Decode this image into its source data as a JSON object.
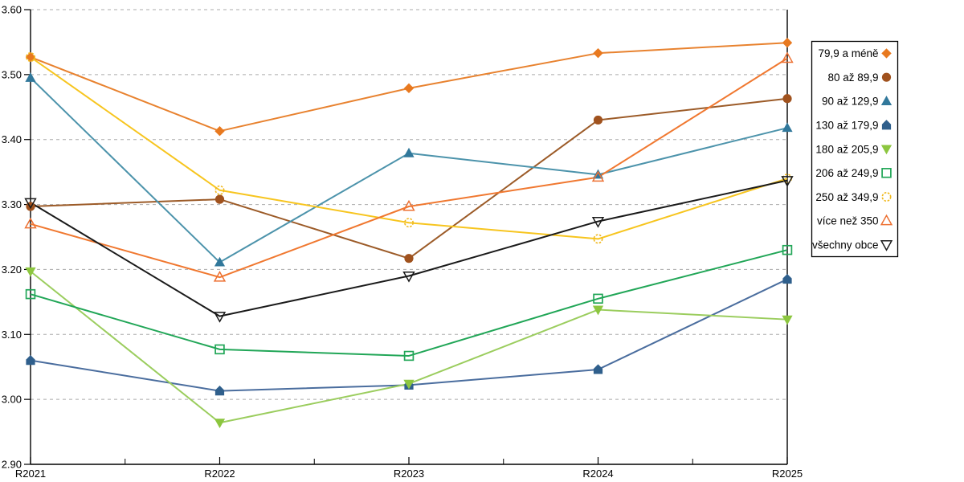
{
  "chart_data": {
    "type": "line",
    "title": "",
    "xlabel": "",
    "ylabel": "",
    "x_categories": [
      "R2021",
      "R2022",
      "R2023",
      "R2024",
      "R2025"
    ],
    "ylim": [
      2.9,
      3.6
    ],
    "ytick_step": 0.1,
    "y_tick_labels": [
      "3.60",
      "3.50",
      "3.40",
      "3.30",
      "3.20",
      "3.10",
      "3.00",
      "2.90"
    ],
    "grid": "horizontal-dashed",
    "legend_position": "right-outside-boxed",
    "series": [
      {
        "name": "79,9 a méně",
        "marker": "diamond-filled",
        "color": "#E8791F",
        "line_color": "#E8822F",
        "values": [
          3.527,
          3.413,
          3.479,
          3.533,
          3.549
        ]
      },
      {
        "name": "80 až 89,9",
        "marker": "circle-filled",
        "color": "#A0521E",
        "line_color": "#9C5B28",
        "values": [
          3.297,
          3.308,
          3.217,
          3.43,
          3.463
        ]
      },
      {
        "name": "90 až 129,9",
        "marker": "triangle-up-filled",
        "color": "#31789B",
        "line_color": "#4C93AB",
        "values": [
          3.495,
          3.211,
          3.379,
          3.346,
          3.418
        ]
      },
      {
        "name": "130 až 179,9",
        "marker": "pentagon-filled",
        "color": "#2F5F8C",
        "line_color": "#4A6D9E",
        "values": [
          3.06,
          3.013,
          3.022,
          3.046,
          3.185
        ]
      },
      {
        "name": "180 až 205,9",
        "marker": "triangle-down-filled",
        "color": "#8CC63F",
        "line_color": "#9BCD5E",
        "values": [
          3.197,
          2.964,
          3.024,
          3.138,
          3.123
        ]
      },
      {
        "name": "206 až 249,9",
        "marker": "square-open",
        "color": "#21A657",
        "line_color": "#21A657",
        "values": [
          3.162,
          3.077,
          3.067,
          3.155,
          3.23
        ]
      },
      {
        "name": "250 až 349,9",
        "marker": "circle-open",
        "color": "#F0B81C",
        "line_color": "#F7C51F",
        "values": [
          3.527,
          3.322,
          3.272,
          3.247,
          3.34
        ]
      },
      {
        "name": "více než 350",
        "marker": "triangle-up-open",
        "color": "#ED7133",
        "line_color": "#F07830",
        "values": [
          3.27,
          3.188,
          3.297,
          3.342,
          3.525
        ]
      },
      {
        "name": "všechny obce",
        "marker": "triangle-down-open",
        "color": "#1A1A1A",
        "line_color": "#1A1A1A",
        "values": [
          3.303,
          3.128,
          3.19,
          3.274,
          3.337
        ]
      }
    ]
  },
  "style": {
    "grid_color": "#ABABAB",
    "axis_color": "#000000",
    "legend_border_color": "#000000",
    "background": "#FFFFFF",
    "tick_font_size": 13,
    "legend_font_size": 13.5
  }
}
